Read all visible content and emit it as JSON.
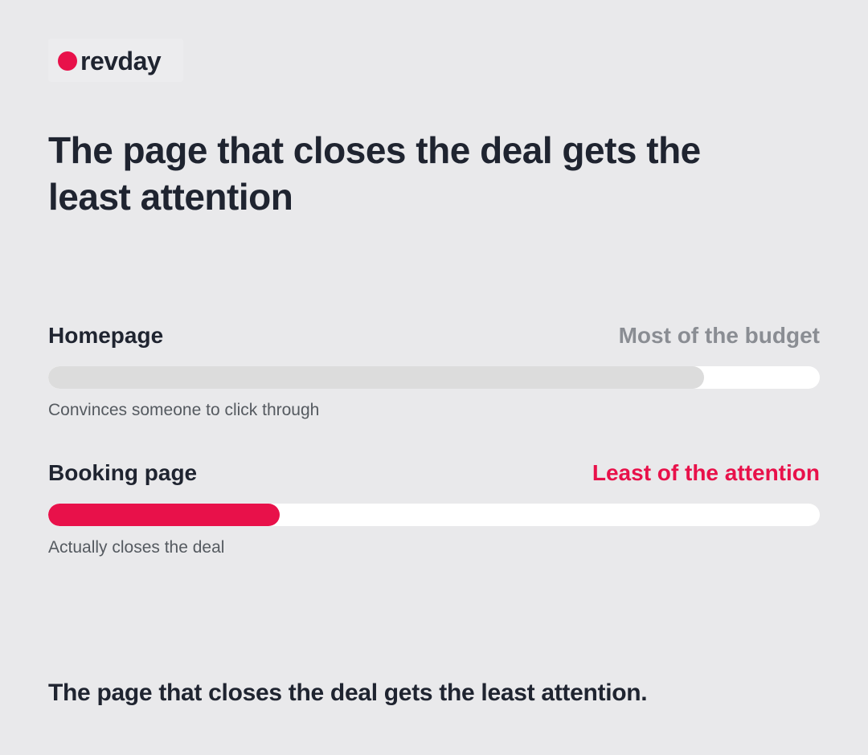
{
  "logo": {
    "text": "revday"
  },
  "headline": "The page that closes the deal gets the least attention",
  "scale": [
    0,
    100
  ],
  "rows": [
    {
      "label": "Homepage",
      "tag": "Most of the budget",
      "note": "Convinces someone to click through",
      "value": 85,
      "color": "#dcdcdc",
      "tag_color": "#8a8d93"
    },
    {
      "label": "Booking page",
      "tag": "Least of the attention",
      "note": "Actually closes the deal",
      "value": 30,
      "color": "#e8114a",
      "tag_color": "#e8114a"
    }
  ],
  "footer": "The page that closes the deal gets the least attention."
}
